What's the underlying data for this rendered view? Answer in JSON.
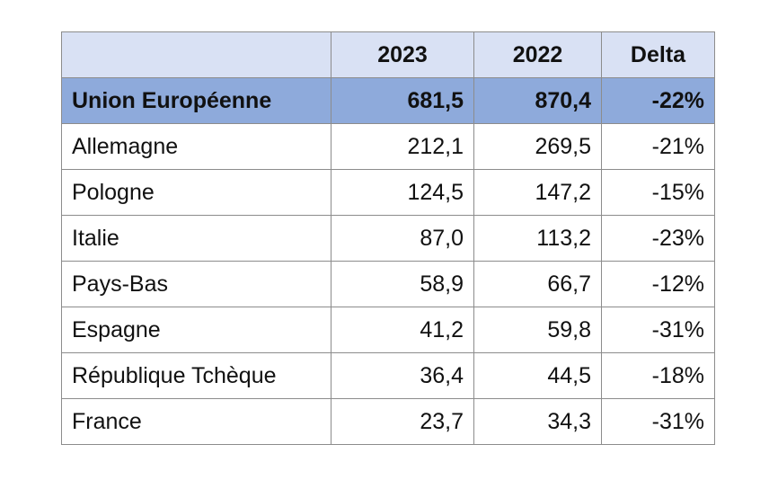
{
  "table": {
    "columns": [
      "",
      "2023",
      "2022",
      "Delta"
    ],
    "total_row": {
      "name": "Union Européenne",
      "v2023": "681,5",
      "v2022": "870,4",
      "delta": "-22%"
    },
    "rows": [
      {
        "name": "Allemagne",
        "v2023": "212,1",
        "v2022": "269,5",
        "delta": "-21%"
      },
      {
        "name": "Pologne",
        "v2023": "124,5",
        "v2022": "147,2",
        "delta": "-15%"
      },
      {
        "name": "Italie",
        "v2023": "87,0",
        "v2022": "113,2",
        "delta": "-23%"
      },
      {
        "name": "Pays-Bas",
        "v2023": "58,9",
        "v2022": "66,7",
        "delta": "-12%"
      },
      {
        "name": "Espagne",
        "v2023": "41,2",
        "v2022": "59,8",
        "delta": "-31%"
      },
      {
        "name": "République Tchèque",
        "v2023": "36,4",
        "v2022": "44,5",
        "delta": "-18%"
      },
      {
        "name": "France",
        "v2023": "23,7",
        "v2022": "34,3",
        "delta": "-31%"
      }
    ]
  },
  "colors": {
    "header_bg": "#d9e1f4",
    "total_row_bg": "#8eaadb",
    "border": "#8c8c8c"
  }
}
